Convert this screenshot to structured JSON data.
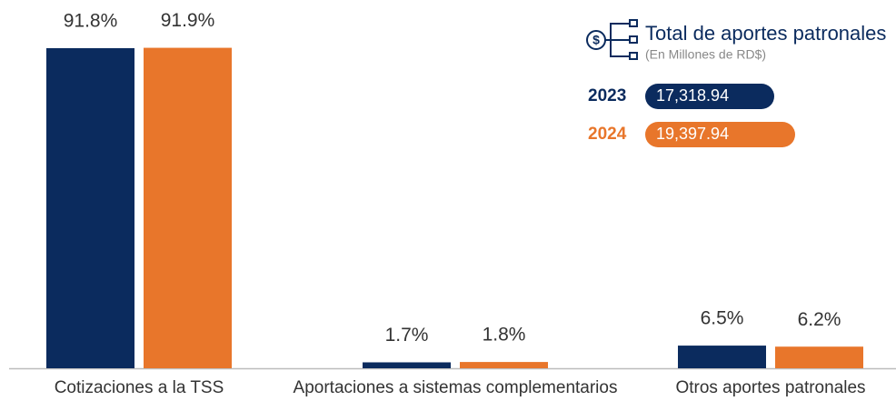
{
  "chart_data": {
    "type": "bar",
    "legend_title": "Total de aportes patronales",
    "legend_subtitle": "(En Millones de RD$)",
    "categories": [
      "Cotizaciones a la TSS",
      "Aportaciones a sistemas complementarios",
      "Otros aportes patronales"
    ],
    "series": [
      {
        "name": "2023",
        "color": "#0b2b5e",
        "total": "17,318.94",
        "values": [
          91.8,
          1.7,
          6.5
        ],
        "value_labels": [
          "91.8%",
          "1.7%",
          "6.5%"
        ]
      },
      {
        "name": "2024",
        "color": "#e8762b",
        "total": "19,397.94",
        "values": [
          91.9,
          1.8,
          6.2
        ],
        "value_labels": [
          "91.9%",
          "1.8%",
          "6.2%"
        ]
      }
    ]
  }
}
